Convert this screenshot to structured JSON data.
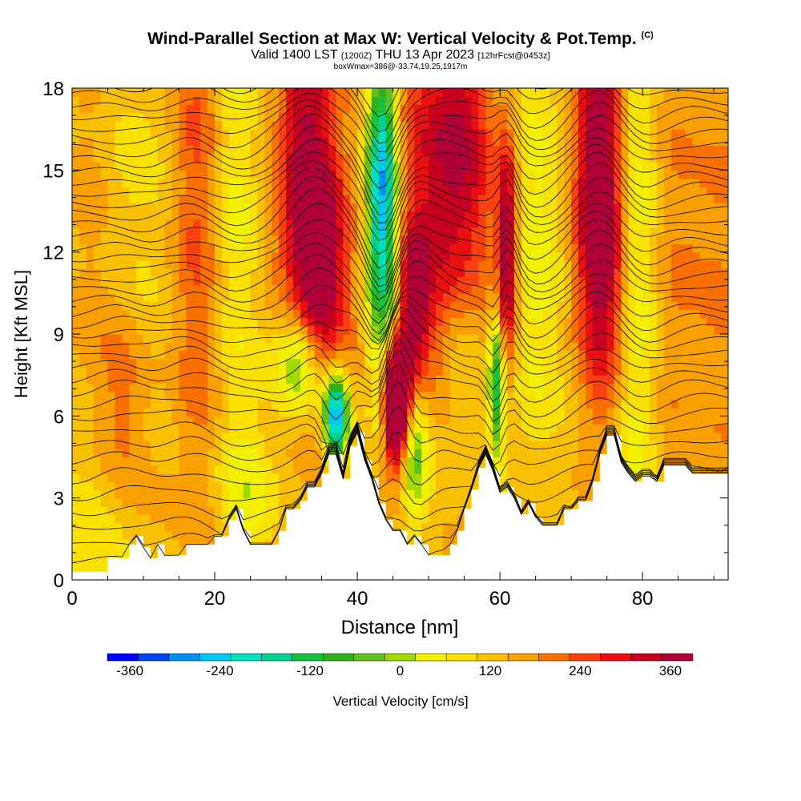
{
  "title_main": "Wind-Parallel Section at Max W: Vertical Velocity & Pot.Temp.",
  "title_copyright": "(C)",
  "subtitle_valid": "Valid 1400 LST",
  "subtitle_utc": "(1200Z)",
  "subtitle_date": "THU 13 Apr 2023",
  "subtitle_fcst": "[12hrFcst@0453z]",
  "subtitle_box": "boxWmax=386@-33.74,19.25,1917m",
  "colorbar_label": "Vertical Velocity [cm/s]",
  "chart_data": {
    "type": "heatmap",
    "xlabel": "Distance [nm]",
    "ylabel": "Height [Kft MSL]",
    "xlim": [
      0,
      92
    ],
    "ylim": [
      0,
      18
    ],
    "xticks": [
      0,
      20,
      40,
      60,
      80
    ],
    "yticks": [
      0,
      3,
      6,
      9,
      12,
      15,
      18
    ],
    "grid": false,
    "colorbar": {
      "min": -390,
      "max": 390,
      "step": 30,
      "tick_values": [
        -360,
        -240,
        -120,
        0,
        120,
        240,
        360
      ],
      "tick_labels": [
        "-360",
        "-240",
        "-120",
        "0",
        "120",
        "240",
        "360"
      ],
      "colors": [
        "#0000ff",
        "#0044f0",
        "#0090f0",
        "#00c8f0",
        "#00e0c0",
        "#00d090",
        "#18c040",
        "#30b020",
        "#60c020",
        "#a0d800",
        "#f0f000",
        "#f8e000",
        "#f8c000",
        "#f8a000",
        "#f87000",
        "#f84010",
        "#e81010",
        "#c80020",
        "#b00038"
      ]
    },
    "terrain_kft": [
      [
        0,
        0.3
      ],
      [
        5,
        0.3
      ],
      [
        5,
        0.8
      ],
      [
        8,
        0.8
      ],
      [
        8,
        1.3
      ],
      [
        9,
        1.3
      ],
      [
        9,
        1.6
      ],
      [
        10,
        1.6
      ],
      [
        10,
        1.2
      ],
      [
        11,
        1.2
      ],
      [
        11,
        0.8
      ],
      [
        12,
        0.8
      ],
      [
        12,
        1.3
      ],
      [
        13,
        1.3
      ],
      [
        13,
        0.9
      ],
      [
        16,
        0.9
      ],
      [
        16,
        1.3
      ],
      [
        20,
        1.3
      ],
      [
        20,
        1.6
      ],
      [
        22,
        1.6
      ],
      [
        22,
        2.2
      ],
      [
        23,
        2.2
      ],
      [
        23,
        2.6
      ],
      [
        24,
        2.6
      ],
      [
        24,
        1.8
      ],
      [
        25,
        1.8
      ],
      [
        25,
        1.3
      ],
      [
        29,
        1.3
      ],
      [
        29,
        1.8
      ],
      [
        30,
        1.8
      ],
      [
        30,
        2.6
      ],
      [
        32,
        2.6
      ],
      [
        32,
        2.9
      ],
      [
        33,
        2.9
      ],
      [
        33,
        3.4
      ],
      [
        35,
        3.4
      ],
      [
        35,
        3.9
      ],
      [
        36,
        3.9
      ],
      [
        36,
        4.6
      ],
      [
        38,
        4.6
      ],
      [
        38,
        3.7
      ],
      [
        39,
        3.7
      ],
      [
        39,
        4.9
      ],
      [
        40,
        4.9
      ],
      [
        40,
        5.4
      ],
      [
        41,
        5.4
      ],
      [
        41,
        4.4
      ],
      [
        42,
        4.4
      ],
      [
        42,
        3.7
      ],
      [
        43,
        3.7
      ],
      [
        43,
        2.8
      ],
      [
        44,
        2.8
      ],
      [
        44,
        2.2
      ],
      [
        45,
        2.2
      ],
      [
        45,
        1.8
      ],
      [
        47,
        1.8
      ],
      [
        47,
        1.3
      ],
      [
        48,
        1.3
      ],
      [
        48,
        1.6
      ],
      [
        49,
        1.6
      ],
      [
        49,
        1.3
      ],
      [
        50,
        1.3
      ],
      [
        50,
        0.9
      ],
      [
        53,
        0.9
      ],
      [
        53,
        1.3
      ],
      [
        54,
        1.3
      ],
      [
        54,
        1.8
      ],
      [
        55,
        1.8
      ],
      [
        55,
        2.6
      ],
      [
        56,
        2.6
      ],
      [
        56,
        3.3
      ],
      [
        57,
        3.3
      ],
      [
        57,
        4.1
      ],
      [
        58,
        4.1
      ],
      [
        58,
        4.6
      ],
      [
        59,
        4.6
      ],
      [
        59,
        4.0
      ],
      [
        60,
        4.0
      ],
      [
        60,
        3.2
      ],
      [
        61,
        3.2
      ],
      [
        61,
        3.4
      ],
      [
        62,
        3.4
      ],
      [
        62,
        3.0
      ],
      [
        63,
        3.0
      ],
      [
        63,
        2.4
      ],
      [
        64,
        2.4
      ],
      [
        64,
        2.8
      ],
      [
        65,
        2.8
      ],
      [
        65,
        2.3
      ],
      [
        66,
        2.3
      ],
      [
        66,
        2.0
      ],
      [
        69,
        2.0
      ],
      [
        69,
        2.6
      ],
      [
        71,
        2.6
      ],
      [
        71,
        2.9
      ],
      [
        73,
        2.9
      ],
      [
        73,
        3.6
      ],
      [
        74,
        3.6
      ],
      [
        74,
        4.6
      ],
      [
        75,
        4.6
      ],
      [
        75,
        5.3
      ],
      [
        77,
        5.3
      ],
      [
        77,
        4.3
      ],
      [
        78,
        4.3
      ],
      [
        78,
        3.9
      ],
      [
        79,
        3.9
      ],
      [
        79,
        3.6
      ],
      [
        80,
        3.6
      ],
      [
        80,
        3.8
      ],
      [
        82,
        3.8
      ],
      [
        82,
        3.6
      ],
      [
        83,
        3.6
      ],
      [
        83,
        4.2
      ],
      [
        87,
        4.2
      ],
      [
        87,
        3.9
      ],
      [
        92,
        3.9
      ]
    ],
    "vertical_velocity_features": [
      {
        "x_nm": 3,
        "z_kft": 2.0,
        "w_cms": -60,
        "sx": 4,
        "sz": 3
      },
      {
        "x_nm": 12,
        "z_kft": 14,
        "w_cms": -60,
        "sx": 3.5,
        "sz": 8
      },
      {
        "x_nm": 17,
        "z_kft": 14,
        "w_cms": 100,
        "sx": 3,
        "sz": 8
      },
      {
        "x_nm": 7,
        "z_kft": 6,
        "w_cms": 80,
        "sx": 2.5,
        "sz": 3
      },
      {
        "x_nm": 22,
        "z_kft": 14,
        "w_cms": -80,
        "sx": 2.5,
        "sz": 7
      },
      {
        "x_nm": 25,
        "z_kft": 3,
        "w_cms": -60,
        "sx": 4,
        "sz": 2
      },
      {
        "x_nm": 33,
        "z_kft": 15,
        "w_cms": 170,
        "sx": 2.5,
        "sz": 5
      },
      {
        "x_nm": 35,
        "z_kft": 11,
        "w_cms": 150,
        "sx": 2.5,
        "sz": 3
      },
      {
        "x_nm": 32,
        "z_kft": 8,
        "w_cms": -180,
        "sx": 2.5,
        "sz": 1.5
      },
      {
        "x_nm": 37,
        "z_kft": 6,
        "w_cms": -330,
        "sx": 1.2,
        "sz": 1.2
      },
      {
        "x_nm": 43.5,
        "z_kft": 14,
        "w_cms": -300,
        "sx": 1.5,
        "sz": 4
      },
      {
        "x_nm": 45.5,
        "z_kft": 6.5,
        "w_cms": 386,
        "sx": 1.2,
        "sz": 1.5
      },
      {
        "x_nm": 48,
        "z_kft": 10,
        "w_cms": 160,
        "sx": 1.5,
        "sz": 2
      },
      {
        "x_nm": 48,
        "z_kft": 4.5,
        "w_cms": -150,
        "sx": 1.5,
        "sz": 2
      },
      {
        "x_nm": 53,
        "z_kft": 15,
        "w_cms": 170,
        "sx": 4,
        "sz": 5
      },
      {
        "x_nm": 55,
        "z_kft": 8,
        "w_cms": -80,
        "sx": 2,
        "sz": 3
      },
      {
        "x_nm": 59.5,
        "z_kft": 7,
        "w_cms": -200,
        "sx": 0.8,
        "sz": 2
      },
      {
        "x_nm": 61,
        "z_kft": 12,
        "w_cms": 200,
        "sx": 1,
        "sz": 3
      },
      {
        "x_nm": 65,
        "z_kft": 12,
        "w_cms": -90,
        "sx": 2.5,
        "sz": 6
      },
      {
        "x_nm": 74,
        "z_kft": 15,
        "w_cms": 200,
        "sx": 2.5,
        "sz": 4
      },
      {
        "x_nm": 75,
        "z_kft": 10,
        "w_cms": 80,
        "sx": 2.5,
        "sz": 3
      },
      {
        "x_nm": 79,
        "z_kft": 12,
        "w_cms": -90,
        "sx": 2.5,
        "sz": 8
      },
      {
        "x_nm": 87,
        "z_kft": 12,
        "w_cms": 40,
        "sx": 4,
        "sz": 6
      }
    ],
    "potential_temperature_contour_base_kft": [
      0.9,
      1.5,
      2.1,
      2.7,
      3.3,
      3.9,
      4.5,
      5.0,
      5.5,
      6.0,
      6.5,
      7.0,
      7.4,
      7.8,
      8.2,
      8.6,
      9.0,
      9.4,
      9.8,
      10.2,
      10.6,
      11.0,
      11.4,
      11.8,
      12.2,
      12.6,
      13.0,
      13.4,
      13.8,
      14.2,
      14.6,
      15.0,
      15.4,
      15.8,
      16.2,
      16.6,
      17.0,
      17.4,
      17.8,
      18.2
    ]
  }
}
